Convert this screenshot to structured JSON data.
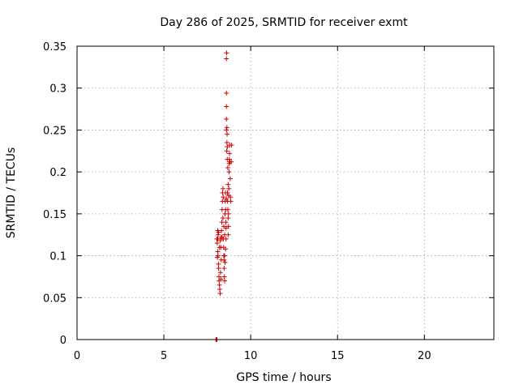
{
  "chart_data": {
    "type": "scatter",
    "title": "Day 286 of 2025, SRMTID for receiver exmt",
    "xlabel": "GPS time / hours",
    "ylabel": "SRMTID / TECUs",
    "xlim": [
      0,
      24
    ],
    "ylim": [
      0,
      0.35
    ],
    "xticks": [
      0,
      5,
      10,
      15,
      20
    ],
    "yticks": [
      0,
      0.05,
      0.1,
      0.15,
      0.2,
      0.25,
      0.3,
      0.35
    ],
    "xtick_labels": [
      "0",
      "5",
      "10",
      "15",
      "20"
    ],
    "ytick_labels": [
      "0",
      "0.05",
      "0.1",
      "0.15",
      "0.2",
      "0.25",
      "0.3",
      "0.35"
    ],
    "grid": true,
    "marker": "plus",
    "color": "#cc0000",
    "points": [
      [
        8.0,
        0.0
      ],
      [
        8.02,
        0.0
      ],
      [
        8.05,
        0.0
      ],
      [
        8.05,
        0.12
      ],
      [
        8.07,
        0.115
      ],
      [
        8.1,
        0.13
      ],
      [
        8.12,
        0.125
      ],
      [
        8.1,
        0.105
      ],
      [
        8.12,
        0.1
      ],
      [
        8.14,
        0.09
      ],
      [
        8.15,
        0.085
      ],
      [
        8.17,
        0.075
      ],
      [
        8.18,
        0.07
      ],
      [
        8.2,
        0.065
      ],
      [
        8.22,
        0.06
      ],
      [
        8.24,
        0.055
      ],
      [
        8.26,
        0.08
      ],
      [
        8.25,
        0.118
      ],
      [
        8.28,
        0.11
      ],
      [
        8.3,
        0.122
      ],
      [
        8.32,
        0.13
      ],
      [
        8.34,
        0.14
      ],
      [
        8.35,
        0.155
      ],
      [
        8.37,
        0.165
      ],
      [
        8.38,
        0.175
      ],
      [
        8.4,
        0.18
      ],
      [
        8.42,
        0.17
      ],
      [
        8.4,
        0.145
      ],
      [
        8.42,
        0.12
      ],
      [
        8.44,
        0.11
      ],
      [
        8.45,
        0.1
      ],
      [
        8.46,
        0.095
      ],
      [
        8.47,
        0.085
      ],
      [
        8.48,
        0.075
      ],
      [
        8.5,
        0.1
      ],
      [
        8.5,
        0.125
      ],
      [
        8.52,
        0.15
      ],
      [
        8.53,
        0.165
      ],
      [
        8.55,
        0.175
      ],
      [
        8.56,
        0.155
      ],
      [
        8.57,
        0.14
      ],
      [
        8.58,
        0.12
      ],
      [
        8.6,
        0.25
      ],
      [
        8.6,
        0.263
      ],
      [
        8.6,
        0.278
      ],
      [
        8.6,
        0.294
      ],
      [
        8.6,
        0.335
      ],
      [
        8.61,
        0.342
      ],
      [
        8.62,
        0.225
      ],
      [
        8.63,
        0.235
      ],
      [
        8.64,
        0.245
      ],
      [
        8.65,
        0.23
      ],
      [
        8.66,
        0.175
      ],
      [
        8.67,
        0.165
      ],
      [
        8.68,
        0.155
      ],
      [
        8.7,
        0.145
      ],
      [
        8.7,
        0.125
      ],
      [
        8.72,
        0.135
      ],
      [
        8.73,
        0.172
      ],
      [
        8.74,
        0.18
      ],
      [
        8.75,
        0.2
      ],
      [
        8.76,
        0.21
      ],
      [
        8.77,
        0.215
      ],
      [
        8.78,
        0.222
      ],
      [
        8.79,
        0.232
      ],
      [
        8.8,
        0.212
      ],
      [
        8.82,
        0.192
      ],
      [
        8.83,
        0.17
      ],
      [
        8.85,
        0.165
      ],
      [
        8.63,
        0.253
      ],
      [
        8.65,
        0.215
      ],
      [
        8.68,
        0.205
      ],
      [
        8.7,
        0.185
      ],
      [
        8.72,
        0.15
      ],
      [
        8.6,
        0.168
      ],
      [
        8.58,
        0.133
      ],
      [
        8.55,
        0.108
      ],
      [
        8.52,
        0.092
      ],
      [
        8.5,
        0.07
      ],
      [
        8.45,
        0.135
      ],
      [
        8.35,
        0.122
      ],
      [
        8.3,
        0.095
      ],
      [
        8.28,
        0.072
      ],
      [
        8.2,
        0.11
      ],
      [
        8.15,
        0.128
      ],
      [
        8.1,
        0.12
      ],
      [
        8.08,
        0.098
      ],
      [
        8.9,
        0.232
      ],
      [
        8.88,
        0.212
      ]
    ]
  }
}
